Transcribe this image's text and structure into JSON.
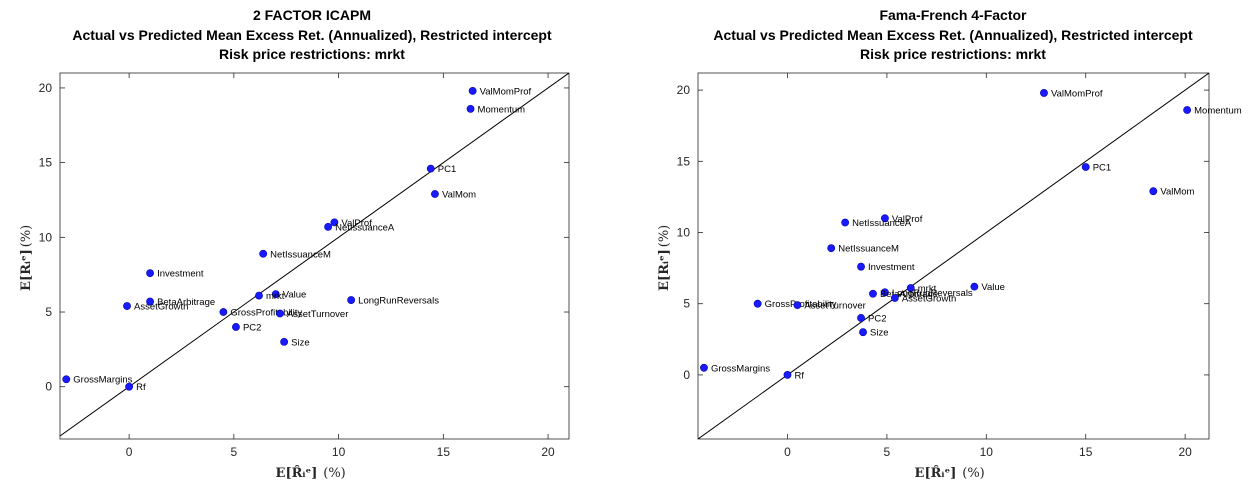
{
  "chart_data": [
    {
      "type": "scatter",
      "title_lines": [
        "2 FACTOR ICAPM",
        "Actual vs Predicted Mean Excess Ret. (Annualized), Restricted intercept",
        "Risk price restrictions: mrkt"
      ],
      "xlabel_main": "E[R̂ᵢᵉ]",
      "xlabel_unit": "(%)",
      "ylabel_main": "E[Rᵢᵉ]",
      "ylabel_unit": "(%)",
      "xlim": [
        -3.3,
        21
      ],
      "ylim": [
        -3.5,
        21
      ],
      "xticks": [
        "0",
        "5",
        "10",
        "15",
        "20"
      ],
      "xtick_values": [
        0,
        5,
        10,
        15,
        20
      ],
      "yticks": [
        "0",
        "5",
        "10",
        "15",
        "20"
      ],
      "ytick_values": [
        0,
        5,
        10,
        15,
        20
      ],
      "marker_color": "#1a1aff",
      "points": [
        {
          "label": "ValMomProf",
          "x": 16.4,
          "y": 19.8
        },
        {
          "label": "Momentum",
          "x": 16.3,
          "y": 18.6
        },
        {
          "label": "PC1",
          "x": 14.4,
          "y": 14.6
        },
        {
          "label": "ValMom",
          "x": 14.6,
          "y": 12.9
        },
        {
          "label": "ValProf",
          "x": 9.8,
          "y": 11.0
        },
        {
          "label": "NetIssuanceA",
          "x": 9.5,
          "y": 10.7
        },
        {
          "label": "NetIssuanceM",
          "x": 6.4,
          "y": 8.9
        },
        {
          "label": "Investment",
          "x": 1.0,
          "y": 7.6
        },
        {
          "label": "Value",
          "x": 7.0,
          "y": 6.2
        },
        {
          "label": "mrkt",
          "x": 6.2,
          "y": 6.1
        },
        {
          "label": "BetaArbitrage",
          "x": 1.0,
          "y": 5.7
        },
        {
          "label": "AssetGrowth",
          "x": -0.1,
          "y": 5.4
        },
        {
          "label": "LongRunReversals",
          "x": 10.6,
          "y": 5.8
        },
        {
          "label": "GrossProfitability",
          "x": 4.5,
          "y": 5.0
        },
        {
          "label": "AssetTurnover",
          "x": 7.2,
          "y": 4.9
        },
        {
          "label": "PC2",
          "x": 5.1,
          "y": 4.0
        },
        {
          "label": "Size",
          "x": 7.4,
          "y": 3.0
        },
        {
          "label": "GrossMargins",
          "x": -3.0,
          "y": 0.5
        },
        {
          "label": "Rf",
          "x": 0.0,
          "y": 0.0
        }
      ]
    },
    {
      "type": "scatter",
      "title_lines": [
        "Fama-French 4-Factor",
        "Actual vs Predicted Mean Excess Ret. (Annualized), Restricted intercept",
        "Risk price restrictions: mrkt"
      ],
      "xlabel_main": "E[R̂ᵢᵉ]",
      "xlabel_unit": "(%)",
      "ylabel_main": "E[Rᵢᵉ]",
      "ylabel_unit": "(%)",
      "xlim": [
        -4.5,
        21.2
      ],
      "ylim": [
        -4.5,
        21.2
      ],
      "xticks": [
        "0",
        "5",
        "10",
        "15",
        "20"
      ],
      "xtick_values": [
        0,
        5,
        10,
        15,
        20
      ],
      "yticks": [
        "0",
        "5",
        "10",
        "15",
        "20"
      ],
      "ytick_values": [
        0,
        5,
        10,
        15,
        20
      ],
      "marker_color": "#1a1aff",
      "points": [
        {
          "label": "ValMomProf",
          "x": 12.9,
          "y": 19.8
        },
        {
          "label": "Momentum",
          "x": 20.1,
          "y": 18.6
        },
        {
          "label": "PC1",
          "x": 15.0,
          "y": 14.6
        },
        {
          "label": "ValMom",
          "x": 18.4,
          "y": 12.9
        },
        {
          "label": "ValProf",
          "x": 4.9,
          "y": 11.0
        },
        {
          "label": "NetIssuanceA",
          "x": 2.9,
          "y": 10.7
        },
        {
          "label": "NetIssuanceM",
          "x": 2.2,
          "y": 8.9
        },
        {
          "label": "Investment",
          "x": 3.7,
          "y": 7.6
        },
        {
          "label": "Value",
          "x": 9.4,
          "y": 6.2
        },
        {
          "label": "mrkt",
          "x": 6.2,
          "y": 6.1
        },
        {
          "label": "LongRunReversals",
          "x": 4.9,
          "y": 5.8
        },
        {
          "label": "BetaArbitrage",
          "x": 4.3,
          "y": 5.7
        },
        {
          "label": "AssetGrowth",
          "x": 5.4,
          "y": 5.4
        },
        {
          "label": "GrossProfitability",
          "x": -1.5,
          "y": 5.0
        },
        {
          "label": "AssetTurnover",
          "x": 0.5,
          "y": 4.9
        },
        {
          "label": "PC2",
          "x": 3.7,
          "y": 4.0
        },
        {
          "label": "Size",
          "x": 3.8,
          "y": 3.0
        },
        {
          "label": "GrossMargins",
          "x": -4.2,
          "y": 0.5
        },
        {
          "label": "Rf",
          "x": 0.0,
          "y": 0.0
        }
      ]
    }
  ]
}
